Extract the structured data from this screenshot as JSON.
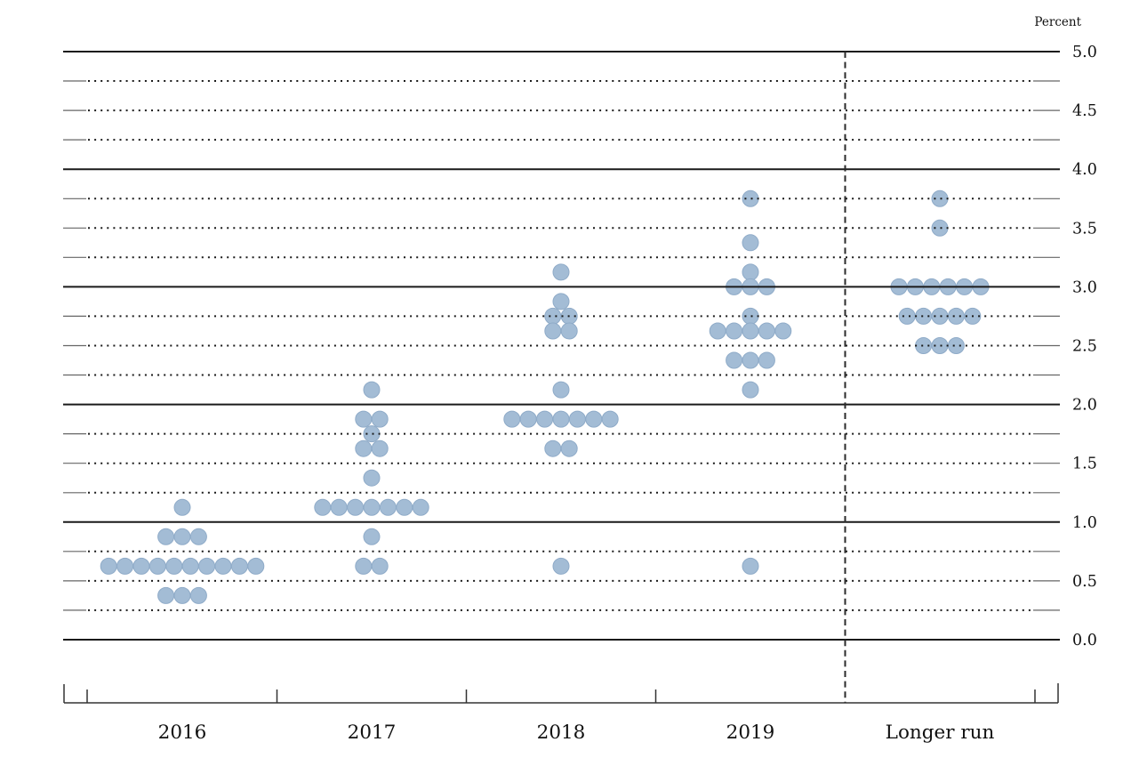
{
  "chart_data": {
    "type": "scatter",
    "subtype": "fomc-dot-plot",
    "unit_label": "Percent",
    "categories": [
      "2016",
      "2017",
      "2018",
      "2019",
      "Longer run"
    ],
    "y_axis": {
      "min": 0.0,
      "max": 5.0,
      "gridline_step": 0.25,
      "solid_line_step": 1.0,
      "label_step": 0.5,
      "tick_labels": [
        "5.0",
        "4.5",
        "4.0",
        "3.5",
        "3.0",
        "2.5",
        "2.0",
        "1.5",
        "1.0",
        "0.5",
        "0.0"
      ]
    },
    "divider": {
      "between": [
        "2019",
        "Longer run"
      ],
      "style": "dashed-vertical"
    },
    "legend_position": "none",
    "grid": "dotted-quarters-solid-integers",
    "series": [
      {
        "category": "2016",
        "dots": [
          {
            "value": 1.125,
            "count": 1
          },
          {
            "value": 0.875,
            "count": 3
          },
          {
            "value": 0.625,
            "count": 10
          },
          {
            "value": 0.375,
            "count": 3
          }
        ]
      },
      {
        "category": "2017",
        "dots": [
          {
            "value": 2.125,
            "count": 1
          },
          {
            "value": 1.875,
            "count": 2
          },
          {
            "value": 1.75,
            "count": 1
          },
          {
            "value": 1.625,
            "count": 2
          },
          {
            "value": 1.375,
            "count": 1
          },
          {
            "value": 1.125,
            "count": 7
          },
          {
            "value": 0.875,
            "count": 1
          },
          {
            "value": 0.625,
            "count": 2
          }
        ]
      },
      {
        "category": "2018",
        "dots": [
          {
            "value": 3.125,
            "count": 1
          },
          {
            "value": 2.875,
            "count": 1
          },
          {
            "value": 2.75,
            "count": 2
          },
          {
            "value": 2.625,
            "count": 2
          },
          {
            "value": 2.125,
            "count": 1
          },
          {
            "value": 1.875,
            "count": 7
          },
          {
            "value": 1.625,
            "count": 2
          },
          {
            "value": 0.625,
            "count": 1
          }
        ]
      },
      {
        "category": "2019",
        "dots": [
          {
            "value": 3.75,
            "count": 1
          },
          {
            "value": 3.375,
            "count": 1
          },
          {
            "value": 3.125,
            "count": 1
          },
          {
            "value": 3.0,
            "count": 3
          },
          {
            "value": 2.75,
            "count": 1
          },
          {
            "value": 2.625,
            "count": 5
          },
          {
            "value": 2.375,
            "count": 3
          },
          {
            "value": 2.125,
            "count": 1
          },
          {
            "value": 0.625,
            "count": 1
          }
        ]
      },
      {
        "category": "Longer run",
        "dots": [
          {
            "value": 3.75,
            "count": 1
          },
          {
            "value": 3.5,
            "count": 1
          },
          {
            "value": 3.0,
            "count": 6
          },
          {
            "value": 2.75,
            "count": 5
          },
          {
            "value": 2.5,
            "count": 3
          }
        ]
      }
    ],
    "colors": {
      "dot_fill": "#a3bcd5",
      "dot_edge": "#8fabc8",
      "grid_line": "#1a1a1a",
      "grid_cap": "#666666",
      "axis": "#333333",
      "divider": "#2a2a2a",
      "text": "#111111",
      "background": "#ffffff"
    }
  }
}
